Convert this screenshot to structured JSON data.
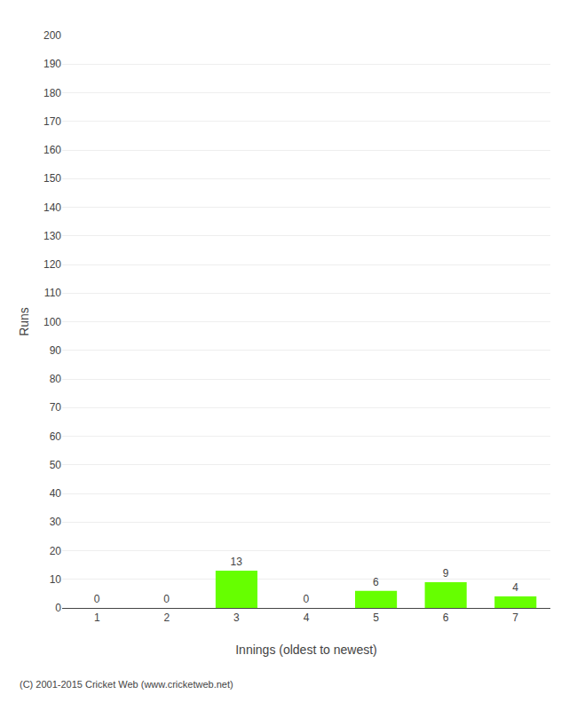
{
  "chart_data": {
    "type": "bar",
    "categories": [
      "1",
      "2",
      "3",
      "4",
      "5",
      "6",
      "7"
    ],
    "values": [
      0,
      0,
      13,
      0,
      6,
      9,
      4
    ],
    "color": "#66ff00",
    "xlabel": "Innings (oldest to newest)",
    "ylabel": "Runs",
    "ylim": [
      0,
      200
    ],
    "yticks": [
      0,
      10,
      20,
      30,
      40,
      50,
      60,
      70,
      80,
      90,
      100,
      110,
      120,
      130,
      140,
      150,
      160,
      170,
      180,
      190,
      200
    ],
    "grid": true,
    "data_labels": true,
    "annotations": [
      "(C) 2001-2015 Cricket Web (www.cricketweb.net)"
    ]
  }
}
